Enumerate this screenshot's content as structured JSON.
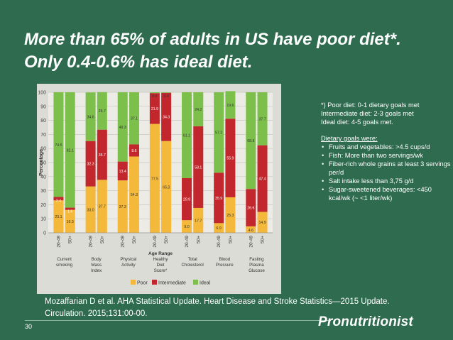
{
  "slide": {
    "title": "More than 65% of adults in US have poor diet*. Only 0.4-0.6% has ideal diet.",
    "citation": "Mozaffarian D et al. AHA Statistical Update. Heart Disease and Stroke Statistics—2015 Update. Circulation. 2015;131:00-00.",
    "page_number": "30",
    "logo_text": "Pronutritionist"
  },
  "notes": {
    "definitions": [
      "*) Poor diet: 0-1 dietary goals met",
      "Intermediate diet: 2-3 goals met",
      "Ideal diet: 4-5 goals met."
    ],
    "goals_heading": "Dietary goals were:",
    "goals": [
      "Fruits and vegetables: >4.5 cups/d",
      "Fish: More than two servings/wk",
      "Fiber-rich whole grains at least 3 servings per/d",
      "Salt intake less than 3,75 g/d",
      "Sugar-sweetened beverages: <450 kcal/wk (~ <1 liter/wk)"
    ]
  },
  "colors": {
    "poor": "#f4b83a",
    "intermediate": "#c1272d",
    "ideal": "#7cc04b",
    "background": "#2f6b4f",
    "figure": "#dcdcd6"
  },
  "chart_data": {
    "type": "bar",
    "stacked": true,
    "ylabel": "Percentage",
    "xlabel": "Age Range",
    "ylim": [
      0,
      100
    ],
    "yticks": [
      0,
      10,
      20,
      30,
      40,
      50,
      60,
      70,
      80,
      90,
      100
    ],
    "groups": [
      "Current smoking",
      "Body Mass Index",
      "Physical Activity",
      "Healthy Diet Score*",
      "Total Cholesterol",
      "Blood Pressure",
      "Fasting Plasma Glucose"
    ],
    "age_ranges": [
      "20-49",
      "50+"
    ],
    "series": [
      {
        "name": "Poor",
        "values": [
          23.1,
          16.3,
          33.0,
          37.7,
          37.3,
          54.3,
          77.5,
          65.3,
          9.0,
          17.7,
          6.9,
          25.3,
          4.6,
          14.9
        ]
      },
      {
        "name": "Intermediate",
        "values": [
          2.4,
          1.6,
          32.3,
          35.7,
          13.4,
          8.6,
          21.9,
          34.3,
          29.9,
          58.1,
          35.9,
          55.9,
          26.6,
          47.4
        ]
      },
      {
        "name": "Ideal",
        "values": [
          74.5,
          82.1,
          34.6,
          26.7,
          49.3,
          37.1,
          0.6,
          0.4,
          61.1,
          24.2,
          57.2,
          19.6,
          68.8,
          37.7
        ]
      }
    ]
  }
}
